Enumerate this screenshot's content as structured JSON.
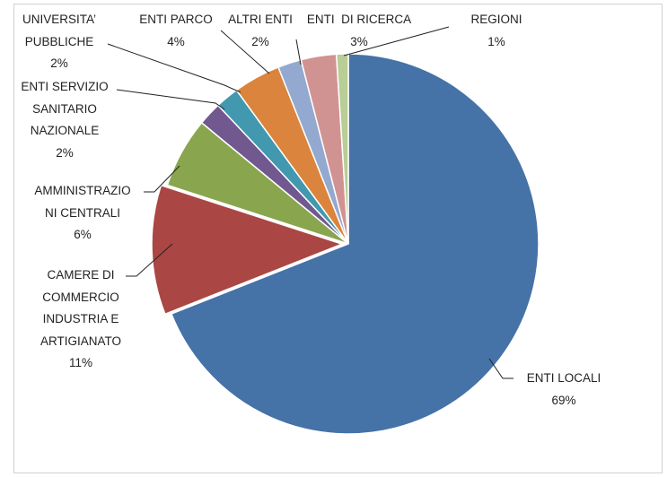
{
  "chart_data": {
    "type": "pie",
    "categories": [
      "ENTI LOCALI",
      "CAMERE DI\nCOMMERCIO\nINDUSTRIA E\nARTIGIANATO",
      "AMMINISTRAZIO\nNI CENTRALI",
      "ENTI SERVIZIO\nSANITARIO\nNAZIONALE",
      "UNIVERSITA’\nPUBBLICHE",
      "ENTI PARCO",
      "ALTRI ENTI",
      "ENTI  DI RICERCA",
      "REGIONI"
    ],
    "values": [
      69,
      11,
      6,
      2,
      2,
      4,
      2,
      3,
      1
    ],
    "value_labels": [
      "69%",
      "11%",
      "6%",
      "2%",
      "2%",
      "4%",
      "2%",
      "3%",
      "1%"
    ],
    "colors": [
      "#4572a7",
      "#aa4643",
      "#89a54e",
      "#71588f",
      "#4198af",
      "#db843d",
      "#93a9cf",
      "#d19392",
      "#b9cd96"
    ]
  }
}
